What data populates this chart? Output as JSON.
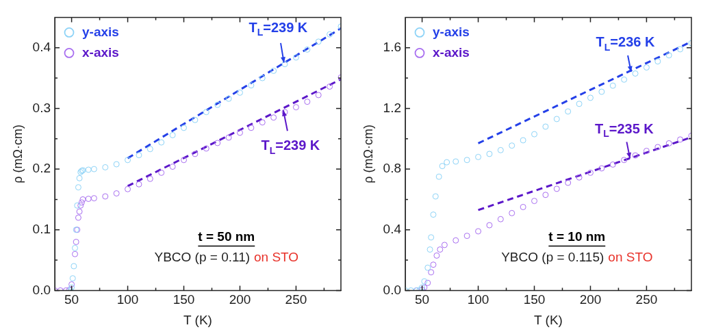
{
  "chart_data": [
    {
      "type": "scatter",
      "xlabel": "T (K)",
      "ylabel": "ρ (mΩ·cm)",
      "marker": "circle",
      "legend": "top left",
      "xlim": [
        35,
        290
      ],
      "ylim": [
        0,
        0.45
      ],
      "xticks": [
        50,
        {
          "value": 75,
          "label": null
        },
        100,
        {
          "value": 125,
          "label": null
        },
        150,
        {
          "value": 175,
          "label": null
        },
        200,
        {
          "value": 225,
          "label": null
        },
        250,
        {
          "value": 275,
          "label": null
        }
      ],
      "yticks": [
        {
          "value": 0,
          "label": "0.0"
        },
        {
          "value": 0.05,
          "label": null
        },
        0.1,
        {
          "value": 0.15,
          "label": null
        },
        0.2,
        {
          "value": 0.25,
          "label": null
        },
        0.3,
        {
          "value": 0.35,
          "label": null
        },
        0.4
      ],
      "series": [
        {
          "name": "y-axis",
          "color": "#8dd3f7",
          "x": [
            49,
            50,
            51,
            52,
            53,
            54,
            55,
            56,
            57,
            58,
            59,
            60,
            65,
            70,
            80,
            90,
            100,
            110,
            120,
            130,
            140,
            150,
            160,
            170,
            180,
            190,
            200,
            210,
            220,
            230,
            240,
            250,
            260,
            270,
            280,
            290
          ],
          "values": [
            0,
            0.005,
            0.02,
            0.04,
            0.07,
            0.1,
            0.14,
            0.17,
            0.185,
            0.195,
            0.197,
            0.198,
            0.199,
            0.2,
            0.203,
            0.208,
            0.215,
            0.223,
            0.233,
            0.244,
            0.256,
            0.268,
            0.281,
            0.294,
            0.306,
            0.316,
            0.326,
            0.338,
            0.35,
            0.362,
            0.373,
            0.384,
            0.397,
            0.41,
            0.422,
            0.435
          ]
        },
        {
          "name": "x-axis",
          "color": "#a86ef0",
          "x": [
            35,
            40,
            45,
            48,
            50,
            53,
            54,
            55,
            56,
            57,
            58,
            59,
            60,
            65,
            70,
            80,
            90,
            100,
            110,
            120,
            130,
            140,
            150,
            160,
            170,
            180,
            190,
            200,
            210,
            220,
            230,
            240,
            250,
            260,
            270,
            280,
            290
          ],
          "values": [
            0,
            0,
            0,
            0.001,
            0.01,
            0.06,
            0.08,
            0.1,
            0.12,
            0.13,
            0.14,
            0.145,
            0.15,
            0.151,
            0.152,
            0.155,
            0.16,
            0.167,
            0.175,
            0.184,
            0.194,
            0.204,
            0.215,
            0.225,
            0.234,
            0.243,
            0.252,
            0.26,
            0.268,
            0.277,
            0.285,
            0.294,
            0.302,
            0.311,
            0.322,
            0.336,
            0.351
          ]
        },
        {
          "type": "line",
          "marker": "none",
          "color": "#2440e8",
          "line_style": "dashed",
          "x": [
            100,
            290
          ],
          "values": [
            0.218,
            0.432
          ]
        },
        {
          "type": "line",
          "marker": "none",
          "color": "#5b17c9",
          "line_style": "dashed",
          "x": [
            100,
            290
          ],
          "values": [
            0.172,
            0.348
          ]
        }
      ],
      "annotations": [
        {
          "text": "T$_{L}$=239 K",
          "x": 239,
          "y": 0.378
        },
        {
          "text": "T$_{L}$=239 K",
          "x": 239,
          "y": 0.294
        },
        "t = 50 nm",
        "YBCO (p = 0.11)",
        "on STO"
      ]
    },
    {
      "type": "scatter",
      "xlabel": "T (K)",
      "ylabel": "ρ (mΩ·cm)",
      "marker": "circle",
      "legend": "top left",
      "xlim": [
        35,
        290
      ],
      "ylim": [
        0,
        1.8
      ],
      "xticks": [
        50,
        {
          "value": 75,
          "label": null
        },
        100,
        {
          "value": 125,
          "label": null
        },
        150,
        {
          "value": 175,
          "label": null
        },
        200,
        {
          "value": 225,
          "label": null
        },
        250,
        {
          "value": 275,
          "label": null
        }
      ],
      "yticks": [
        {
          "value": 0,
          "label": "0.0"
        },
        {
          "value": 0.2,
          "label": null
        },
        0.4,
        {
          "value": 0.6,
          "label": null
        },
        0.8,
        {
          "value": 1,
          "label": null
        },
        1.2,
        {
          "value": 1.4,
          "label": null
        },
        1.6
      ],
      "series": [
        {
          "name": "y-axis",
          "color": "#8dd3f7",
          "x": [
            35,
            40,
            45,
            48,
            50,
            52,
            55,
            57,
            58,
            60,
            62,
            65,
            68,
            72,
            80,
            90,
            100,
            110,
            120,
            130,
            140,
            150,
            160,
            170,
            180,
            190,
            200,
            210,
            220,
            230,
            240,
            250,
            260,
            270,
            280,
            290
          ],
          "values": [
            0,
            0,
            0,
            0.005,
            0.02,
            0.06,
            0.15,
            0.27,
            0.35,
            0.5,
            0.62,
            0.75,
            0.82,
            0.845,
            0.85,
            0.86,
            0.88,
            0.9,
            0.925,
            0.955,
            0.99,
            1.03,
            1.08,
            1.13,
            1.18,
            1.23,
            1.27,
            1.31,
            1.35,
            1.39,
            1.43,
            1.47,
            1.51,
            1.55,
            1.59,
            1.63
          ]
        },
        {
          "name": "x-axis",
          "color": "#a86ef0",
          "x": [
            45,
            50,
            52,
            55,
            58,
            60,
            63,
            66,
            70,
            80,
            90,
            100,
            110,
            120,
            130,
            140,
            150,
            160,
            170,
            180,
            190,
            200,
            210,
            220,
            230,
            240,
            250,
            260,
            270,
            280,
            290
          ],
          "values": [
            0,
            0.005,
            0.02,
            0.05,
            0.12,
            0.17,
            0.23,
            0.27,
            0.3,
            0.33,
            0.36,
            0.39,
            0.43,
            0.47,
            0.51,
            0.55,
            0.59,
            0.63,
            0.67,
            0.71,
            0.745,
            0.776,
            0.805,
            0.83,
            0.86,
            0.89,
            0.92,
            0.945,
            0.97,
            0.995,
            1.02
          ]
        },
        {
          "type": "line",
          "marker": "none",
          "color": "#2440e8",
          "line_style": "dashed",
          "x": [
            100,
            290
          ],
          "values": [
            0.97,
            1.64
          ]
        },
        {
          "type": "line",
          "marker": "none",
          "color": "#5b17c9",
          "line_style": "dashed",
          "x": [
            100,
            290
          ],
          "values": [
            0.53,
            1.01
          ]
        }
      ],
      "annotations": [
        {
          "text": "T$_{L}$=236 K",
          "x": 236,
          "y": 1.45
        },
        {
          "text": "T$_{L}$=235 K",
          "x": 235,
          "y": 0.88
        },
        "t = 10 nm",
        "YBCO (p = 0.115)",
        "on STO"
      ]
    }
  ]
}
